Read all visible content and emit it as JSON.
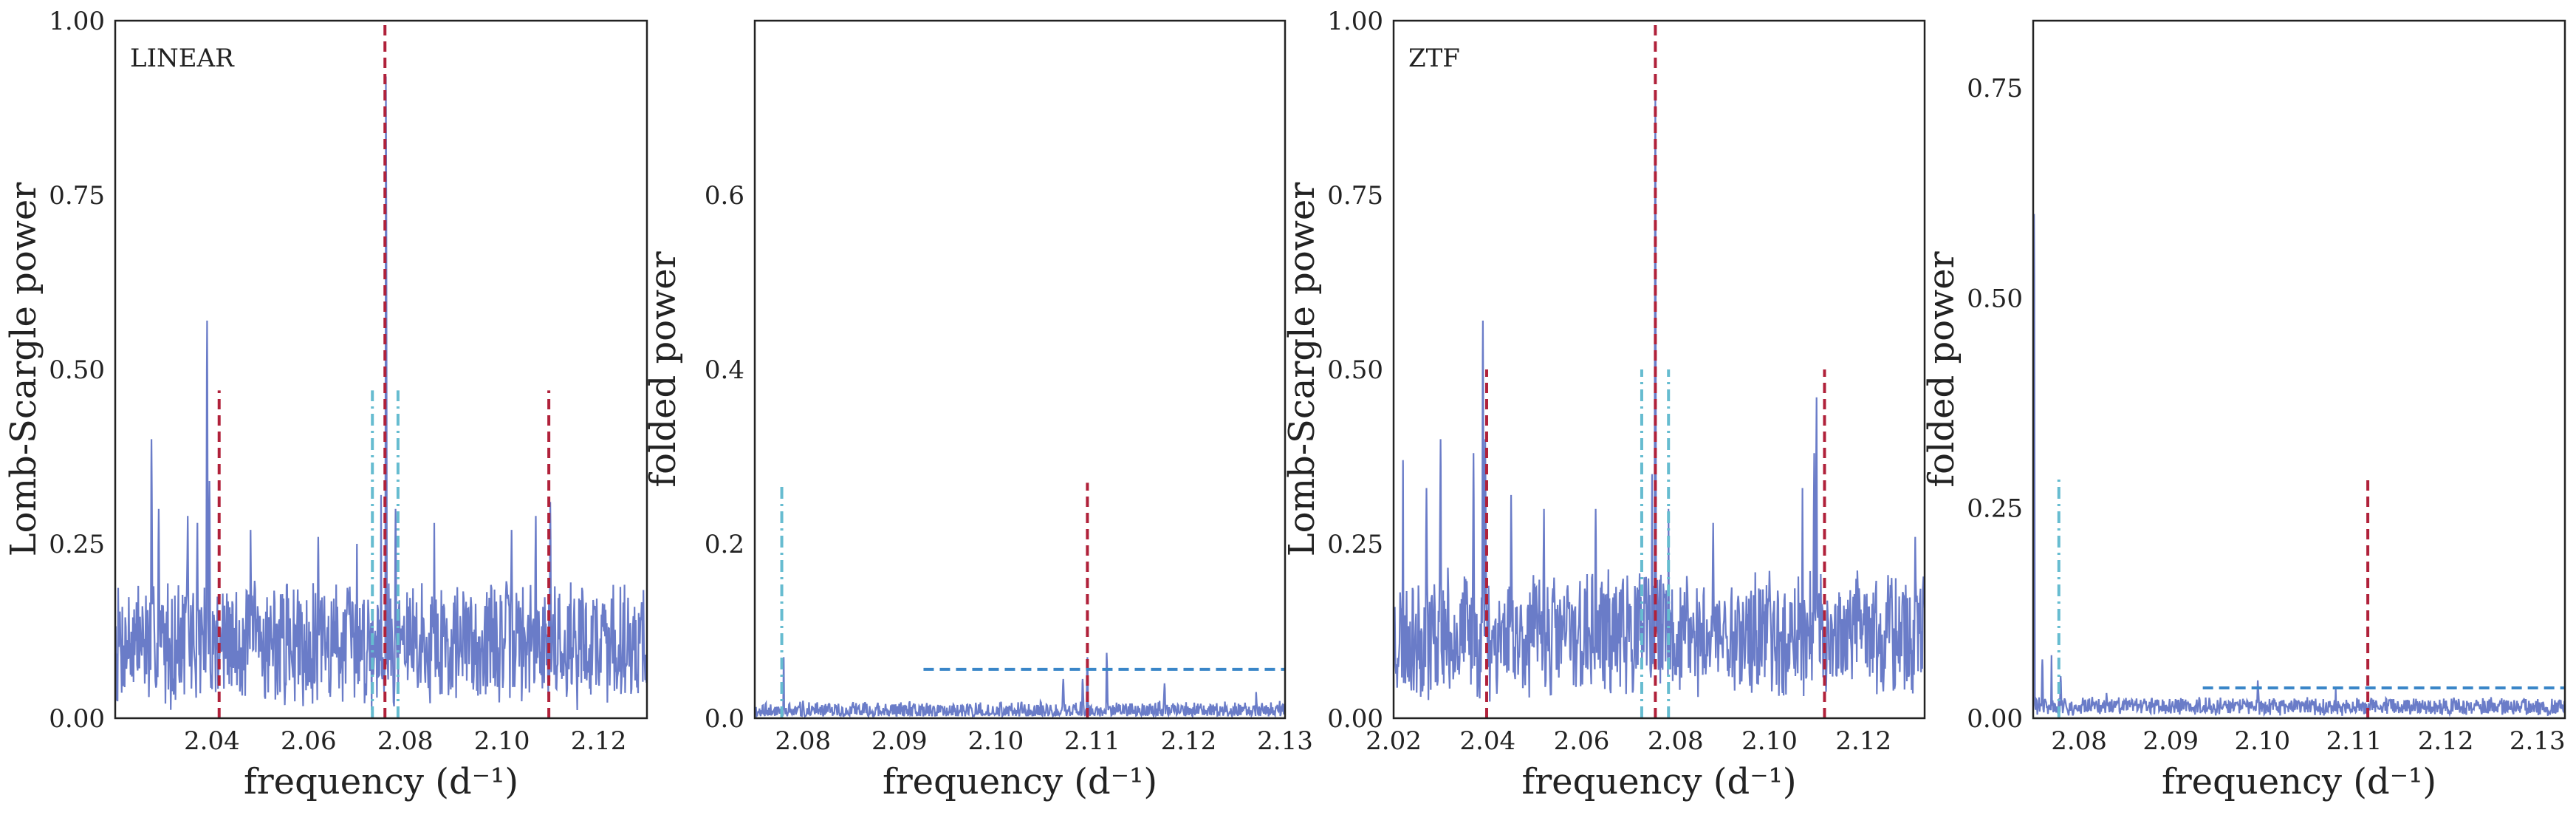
{
  "chart_data": [
    {
      "type": "line",
      "panel_label": "LINEAR",
      "xlabel": "frequency (d⁻¹)",
      "ylabel": "Lomb-Scargle power",
      "xlim": [
        2.02,
        2.13
      ],
      "ylim": [
        0,
        1.0
      ],
      "xticks": [
        2.04,
        2.06,
        2.08,
        2.1,
        2.12
      ],
      "xtick_labels": [
        "2.04",
        "2.06",
        "2.08",
        "2.10",
        "2.12"
      ],
      "yticks": [
        0,
        0.25,
        0.5,
        0.75,
        1.0
      ],
      "ytick_labels": [
        "0.00",
        "0.25",
        "0.50",
        "0.75",
        "1.00"
      ],
      "series": [
        {
          "color": "#6a7cc8",
          "baseline": 0.11,
          "noise": 0.1,
          "seed": 7,
          "peaks": [
            {
              "x": 2.0275,
              "y": 0.4
            },
            {
              "x": 2.029,
              "y": 0.3
            },
            {
              "x": 2.035,
              "y": 0.29
            },
            {
              "x": 2.037,
              "y": 0.28
            },
            {
              "x": 2.039,
              "y": 0.57
            },
            {
              "x": 2.0395,
              "y": 0.34
            },
            {
              "x": 2.048,
              "y": 0.27
            },
            {
              "x": 2.062,
              "y": 0.26
            },
            {
              "x": 2.07,
              "y": 0.25
            },
            {
              "x": 2.075,
              "y": 0.32
            },
            {
              "x": 2.076,
              "y": 0.92
            },
            {
              "x": 2.078,
              "y": 0.3
            },
            {
              "x": 2.086,
              "y": 0.28
            },
            {
              "x": 2.102,
              "y": 0.27
            },
            {
              "x": 2.107,
              "y": 0.29
            },
            {
              "x": 2.11,
              "y": 0.31
            }
          ]
        }
      ],
      "vlines": [
        {
          "x": 2.0758,
          "ymax": 1.0,
          "style": "dashed",
          "color": "#b0213a"
        },
        {
          "x": 2.0415,
          "ymax": 0.47,
          "style": "dashed",
          "color": "#b0213a"
        },
        {
          "x": 2.1097,
          "ymax": 0.47,
          "style": "dashed",
          "color": "#b0213a"
        },
        {
          "x": 2.0732,
          "ymax": 0.47,
          "style": "dashdot",
          "color": "#66bcd0"
        },
        {
          "x": 2.0785,
          "ymax": 0.47,
          "style": "dashdot",
          "color": "#66bcd0"
        }
      ],
      "hlines": []
    },
    {
      "type": "line",
      "panel_label": "",
      "xlabel": "frequency (d⁻¹)",
      "ylabel": "folded power",
      "xlim": [
        2.075,
        2.13
      ],
      "ylim": [
        0,
        0.8
      ],
      "xticks": [
        2.08,
        2.09,
        2.1,
        2.11,
        2.12,
        2.13
      ],
      "xtick_labels": [
        "2.08",
        "2.09",
        "2.10",
        "2.11",
        "2.12",
        "2.13"
      ],
      "yticks": [
        0,
        0.2,
        0.4,
        0.6
      ],
      "ytick_labels": [
        "0.0",
        "0.2",
        "0.4",
        "0.6"
      ],
      "series": [
        {
          "color": "#6a7cc8",
          "baseline": 0.008,
          "noise": 0.012,
          "seed": 11,
          "peaks": [
            {
              "x": 2.078,
              "y": 0.07
            },
            {
              "x": 2.08,
              "y": 0.02
            },
            {
              "x": 2.107,
              "y": 0.045
            },
            {
              "x": 2.109,
              "y": 0.045
            },
            {
              "x": 2.1095,
              "y": 0.07
            },
            {
              "x": 2.1115,
              "y": 0.075
            },
            {
              "x": 2.1175,
              "y": 0.04
            },
            {
              "x": 2.127,
              "y": 0.03
            }
          ]
        }
      ],
      "vlines": [
        {
          "x": 2.1095,
          "ymax": 0.27,
          "style": "dashed",
          "color": "#b0213a"
        },
        {
          "x": 2.0778,
          "ymax": 0.27,
          "style": "dashdot",
          "color": "#66bcd0"
        }
      ],
      "hlines": [
        {
          "y": 0.056,
          "xmin": 2.0925,
          "xmax": 2.13,
          "style": "dashed",
          "color": "#3a86c8"
        }
      ]
    },
    {
      "type": "line",
      "panel_label": "ZTF",
      "xlabel": "frequency (d⁻¹)",
      "ylabel": "Lomb-Scargle power",
      "xlim": [
        2.02,
        2.133
      ],
      "ylim": [
        0,
        1.0
      ],
      "xticks": [
        2.02,
        2.04,
        2.06,
        2.08,
        2.1,
        2.12
      ],
      "xtick_labels": [
        "2.02",
        "2.04",
        "2.06",
        "2.08",
        "2.10",
        "2.12"
      ],
      "yticks": [
        0,
        0.25,
        0.5,
        0.75,
        1.0
      ],
      "ytick_labels": [
        "0.00",
        "0.25",
        "0.50",
        "0.75",
        "1.00"
      ],
      "series": [
        {
          "color": "#6a7cc8",
          "baseline": 0.12,
          "noise": 0.1,
          "seed": 23,
          "peaks": [
            {
              "x": 2.022,
              "y": 0.37
            },
            {
              "x": 2.027,
              "y": 0.33
            },
            {
              "x": 2.03,
              "y": 0.4
            },
            {
              "x": 2.037,
              "y": 0.38
            },
            {
              "x": 2.039,
              "y": 0.57
            },
            {
              "x": 2.0395,
              "y": 0.4
            },
            {
              "x": 2.045,
              "y": 0.32
            },
            {
              "x": 2.052,
              "y": 0.3
            },
            {
              "x": 2.063,
              "y": 0.3
            },
            {
              "x": 2.075,
              "y": 0.35
            },
            {
              "x": 2.0757,
              "y": 0.9
            },
            {
              "x": 2.0785,
              "y": 0.3
            },
            {
              "x": 2.088,
              "y": 0.28
            },
            {
              "x": 2.107,
              "y": 0.33
            },
            {
              "x": 2.1095,
              "y": 0.38
            },
            {
              "x": 2.11,
              "y": 0.46
            },
            {
              "x": 2.131,
              "y": 0.26
            }
          ]
        }
      ],
      "vlines": [
        {
          "x": 2.0757,
          "ymax": 1.0,
          "style": "dashed",
          "color": "#b0213a"
        },
        {
          "x": 2.0398,
          "ymax": 0.5,
          "style": "dashed",
          "color": "#b0213a"
        },
        {
          "x": 2.1117,
          "ymax": 0.5,
          "style": "dashed",
          "color": "#b0213a"
        },
        {
          "x": 2.0728,
          "ymax": 0.5,
          "style": "dashdot",
          "color": "#66bcd0"
        },
        {
          "x": 2.0785,
          "ymax": 0.5,
          "style": "dashdot",
          "color": "#66bcd0"
        }
      ],
      "hlines": []
    },
    {
      "type": "line",
      "panel_label": "",
      "xlabel": "frequency (d⁻¹)",
      "ylabel": "folded power",
      "xlim": [
        2.075,
        2.133
      ],
      "ylim": [
        0,
        0.83
      ],
      "xticks": [
        2.08,
        2.09,
        2.1,
        2.11,
        2.12,
        2.13
      ],
      "xtick_labels": [
        "2.08",
        "2.09",
        "2.10",
        "2.11",
        "2.12",
        "2.13"
      ],
      "yticks": [
        0,
        0.25,
        0.5,
        0.75
      ],
      "ytick_labels": [
        "0.00",
        "0.25",
        "0.50",
        "0.75"
      ],
      "series": [
        {
          "color": "#6a7cc8",
          "baseline": 0.014,
          "noise": 0.012,
          "seed": 31,
          "peaks": [
            {
              "x": 2.0751,
              "y": 0.6
            },
            {
              "x": 2.076,
              "y": 0.07
            },
            {
              "x": 2.077,
              "y": 0.075
            },
            {
              "x": 2.078,
              "y": 0.05
            },
            {
              "x": 2.083,
              "y": 0.03
            },
            {
              "x": 2.0995,
              "y": 0.045
            },
            {
              "x": 2.108,
              "y": 0.035
            }
          ]
        }
      ],
      "vlines": [
        {
          "x": 2.1115,
          "ymax": 0.29,
          "style": "dashed",
          "color": "#b0213a"
        },
        {
          "x": 2.0778,
          "ymax": 0.29,
          "style": "dashdot",
          "color": "#66bcd0"
        }
      ],
      "hlines": [
        {
          "y": 0.036,
          "xmin": 2.0935,
          "xmax": 2.133,
          "style": "dashed",
          "color": "#3a86c8"
        }
      ]
    }
  ]
}
